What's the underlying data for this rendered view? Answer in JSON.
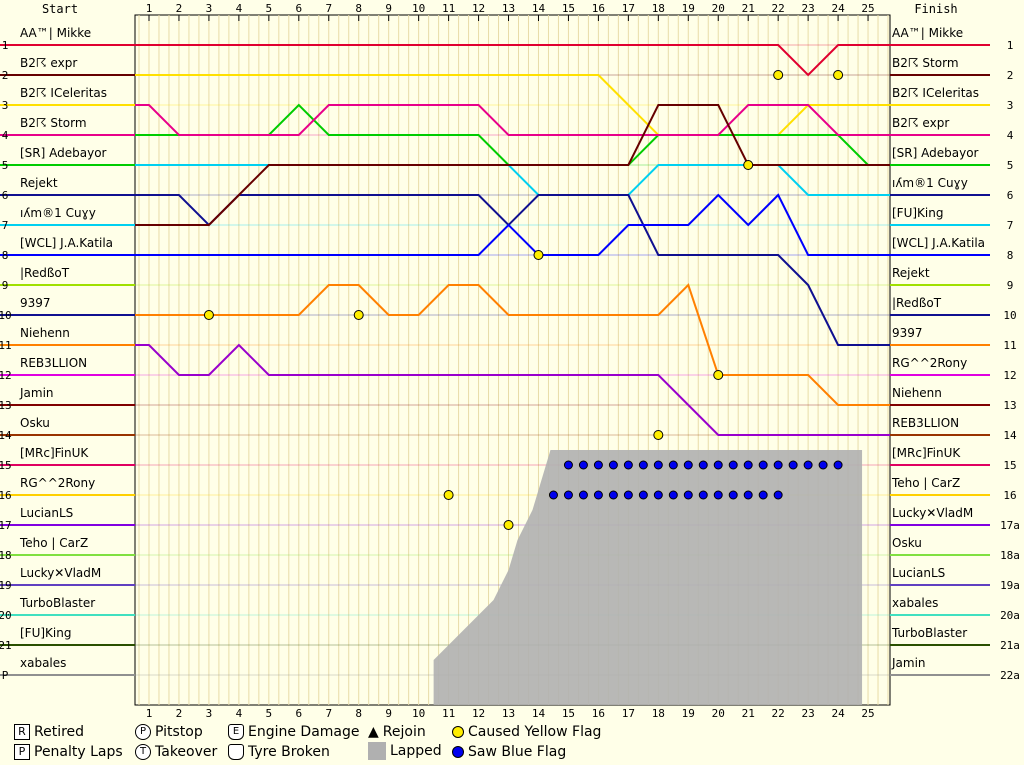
{
  "chart_data": {
    "type": "line",
    "title": "",
    "header_left": "Start",
    "header_right": "Finish",
    "laps": [
      1,
      2,
      3,
      4,
      5,
      6,
      7,
      8,
      9,
      10,
      11,
      12,
      13,
      14,
      15,
      16,
      17,
      18,
      19,
      20,
      21,
      22,
      23,
      24,
      25
    ],
    "start_positions": [
      "1",
      "2",
      "3",
      "4",
      "5",
      "6",
      "7",
      "8",
      "9",
      "10",
      "11",
      "12",
      "13",
      "14",
      "15",
      "16",
      "17",
      "18",
      "19",
      "20",
      "21",
      "P"
    ],
    "finish_positions": [
      "1",
      "2",
      "3",
      "4",
      "5",
      "6",
      "7",
      "8",
      "9",
      "10",
      "11",
      "12",
      "13",
      "14",
      "15",
      "16",
      "17a",
      "18a",
      "19a",
      "20a",
      "21a",
      "22a"
    ],
    "start_drivers": [
      "AA™| Mikke",
      "B2☈ expr",
      "B2☈ ICeleritas",
      "B2☈ Storm",
      "[SR] Adebayor",
      "Rejekt",
      "ıʎm®1 Cuɣy",
      "[WCL] J.A.Katila",
      "|RedßoT",
      "9397",
      "Niehenn",
      "REB3LLION",
      "Jamin",
      "Osku",
      "[MRc]FinUK",
      "RG^^2Rony",
      "LucianLS",
      "Teho | CarZ",
      "Lucky✕VladM",
      "TurboBlaster",
      "[FU]King",
      "xabales"
    ],
    "finish_drivers": [
      "AA™| Mikke",
      "B2☈ Storm",
      "B2☈ ICeleritas",
      "B2☈ expr",
      "[SR] Adebayor",
      "ıʎm®1 Cuɣy",
      "[FU]King",
      "[WCL] J.A.Katila",
      "Rejekt",
      "|RedßoT",
      "9397",
      "RG^^2Rony",
      "Niehenn",
      "REB3LLION",
      "[MRc]FinUK",
      "Teho | CarZ",
      "Lucky✕VladM",
      "Osku",
      "LucianLS",
      "xabales",
      "TurboBlaster",
      "Jamin"
    ],
    "series": [
      {
        "color": "#e00030",
        "values": [
          1,
          1,
          1,
          1,
          1,
          1,
          1,
          1,
          1,
          1,
          1,
          1,
          1,
          1,
          1,
          1,
          1,
          1,
          1,
          1,
          1,
          1,
          2,
          1,
          1
        ]
      },
      {
        "color": "#ffe000",
        "values": [
          2,
          2,
          2,
          2,
          2,
          2,
          2,
          2,
          2,
          2,
          2,
          2,
          2,
          2,
          2,
          2,
          3,
          4,
          4,
          4,
          4,
          4,
          3,
          3,
          3
        ]
      },
      {
        "color": "#00cc00",
        "values": [
          4,
          4,
          4,
          4,
          4,
          3,
          4,
          4,
          4,
          4,
          4,
          4,
          5,
          5,
          5,
          5,
          5,
          4,
          4,
          4,
          4,
          4,
          4,
          4,
          5
        ]
      },
      {
        "color": "#e8008a",
        "values": [
          3,
          4,
          4,
          4,
          4,
          4,
          3,
          3,
          3,
          3,
          3,
          3,
          4,
          4,
          4,
          4,
          4,
          4,
          4,
          4,
          3,
          3,
          3,
          4,
          4
        ]
      },
      {
        "color": "#00d0f0",
        "values": [
          5,
          5,
          5,
          5,
          5,
          5,
          5,
          5,
          5,
          5,
          5,
          5,
          5,
          6,
          6,
          6,
          6,
          5,
          5,
          5,
          5,
          5,
          6,
          6,
          6
        ]
      },
      {
        "color": "#101090",
        "values": [
          6,
          6,
          7,
          6,
          6,
          6,
          6,
          6,
          6,
          6,
          6,
          6,
          7,
          6,
          6,
          6,
          6,
          8,
          8,
          8,
          8,
          8,
          9,
          11,
          11
        ]
      },
      {
        "color": "#660000",
        "values": [
          7,
          7,
          7,
          6,
          5,
          5,
          5,
          5,
          5,
          5,
          5,
          5,
          5,
          5,
          5,
          5,
          5,
          3,
          3,
          3,
          5,
          5,
          5,
          5,
          5
        ]
      },
      {
        "color": "#0000ff",
        "values": [
          8,
          8,
          8,
          8,
          8,
          8,
          8,
          8,
          8,
          8,
          8,
          8,
          7,
          8,
          8,
          8,
          7,
          7,
          7,
          6,
          7,
          6,
          8,
          8,
          8
        ]
      },
      {
        "color": "#ff8000",
        "values": [
          10,
          10,
          10,
          10,
          10,
          10,
          9,
          9,
          10,
          10,
          9,
          9,
          10,
          10,
          10,
          10,
          10,
          10,
          9,
          12,
          12,
          12,
          12,
          13,
          13
        ]
      },
      {
        "color": "#9900cc",
        "values": [
          11,
          12,
          12,
          11,
          12,
          12,
          12,
          12,
          12,
          12,
          12,
          12,
          12,
          12,
          12,
          12,
          12,
          12,
          13,
          14,
          14,
          14,
          14,
          14,
          14
        ]
      }
    ],
    "yellow_flags": true,
    "blue_flags": true
  },
  "legend": {
    "retired": "Retired",
    "penalty": "Penalty Laps",
    "pitstop": "Pitstop",
    "takeover": "Takeover",
    "engine": "Engine Damage",
    "tyre": "Tyre Broken",
    "rejoin": "Rejoin",
    "lapped": "Lapped",
    "yellow": "Caused Yellow Flag",
    "blue": "Saw Blue Flag",
    "icon_R": "R",
    "icon_P": "P",
    "icon_T": "T",
    "icon_E": "E",
    "icon_tri": "▲"
  }
}
